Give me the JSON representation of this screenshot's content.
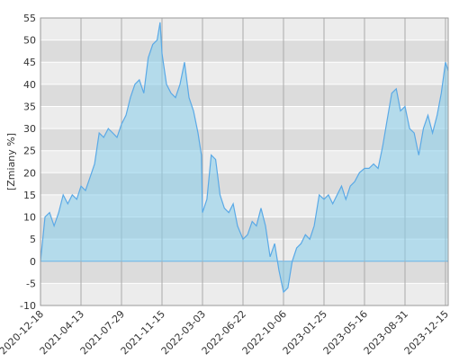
{
  "chart_data": {
    "type": "area",
    "y_label": "[Zmiany %]",
    "x": [
      "2020-12-18",
      "2020-12-31",
      "2021-01-13",
      "2021-01-26",
      "2021-02-08",
      "2021-02-21",
      "2021-03-06",
      "2021-03-19",
      "2021-04-01",
      "2021-04-13",
      "2021-04-25",
      "2021-05-07",
      "2021-05-19",
      "2021-05-31",
      "2021-06-12",
      "2021-06-24",
      "2021-07-06",
      "2021-07-17",
      "2021-07-29",
      "2021-08-10",
      "2021-08-22",
      "2021-09-03",
      "2021-09-15",
      "2021-09-27",
      "2021-10-09",
      "2021-10-21",
      "2021-11-02",
      "2021-11-10",
      "2021-11-15",
      "2021-11-27",
      "2021-12-09",
      "2021-12-21",
      "2022-01-02",
      "2022-01-14",
      "2022-01-26",
      "2022-02-07",
      "2022-02-19",
      "2022-02-28",
      "2022-03-03",
      "2022-03-15",
      "2022-03-27",
      "2022-04-08",
      "2022-04-20",
      "2022-05-02",
      "2022-05-14",
      "2022-05-26",
      "2022-06-07",
      "2022-06-22",
      "2022-07-04",
      "2022-07-16",
      "2022-07-27",
      "2022-08-08",
      "2022-08-20",
      "2022-09-01",
      "2022-09-13",
      "2022-09-24",
      "2022-10-06",
      "2022-10-18",
      "2022-10-30",
      "2022-11-11",
      "2022-11-23",
      "2022-12-05",
      "2022-12-17",
      "2022-12-29",
      "2023-01-12",
      "2023-01-25",
      "2023-02-06",
      "2023-02-18",
      "2023-03-02",
      "2023-03-14",
      "2023-03-26",
      "2023-04-07",
      "2023-04-19",
      "2023-05-02",
      "2023-05-16",
      "2023-05-28",
      "2023-06-09",
      "2023-06-21",
      "2023-07-03",
      "2023-07-15",
      "2023-07-27",
      "2023-08-08",
      "2023-08-19",
      "2023-08-31",
      "2023-09-12",
      "2023-09-24",
      "2023-10-06",
      "2023-10-18",
      "2023-10-30",
      "2023-11-11",
      "2023-11-23",
      "2023-12-04",
      "2023-12-15",
      "2023-12-22"
    ],
    "values": [
      0,
      10,
      11,
      8,
      11,
      15,
      13,
      15,
      14,
      17,
      16,
      19,
      22,
      29,
      28,
      30,
      29,
      28,
      31,
      33,
      37,
      40,
      41,
      38,
      46,
      49,
      50,
      54,
      47,
      40,
      38,
      37,
      40,
      45,
      37,
      34,
      29,
      24,
      11,
      14,
      24,
      23,
      15,
      12,
      11,
      13,
      8,
      5,
      6,
      9,
      8,
      12,
      8,
      1,
      4,
      -2,
      -7,
      -6,
      0,
      3,
      4,
      6,
      5,
      8,
      15,
      14,
      15,
      13,
      15,
      17,
      14,
      17,
      18,
      20,
      21,
      21,
      22,
      21,
      26,
      32,
      38,
      39,
      34,
      35,
      30,
      29,
      24,
      30,
      33,
      29,
      33,
      38,
      45,
      43
    ],
    "color": "#5aa9e6",
    "ylim": [
      -10,
      55
    ],
    "yticks": [
      -10,
      -5,
      0,
      5,
      10,
      15,
      20,
      25,
      30,
      35,
      40,
      45,
      50,
      55
    ],
    "xticks": [
      "2020-12-18",
      "2021-04-13",
      "2021-07-29",
      "2021-11-15",
      "2022-03-03",
      "2022-06-22",
      "2022-10-06",
      "2023-01-25",
      "2023-05-16",
      "2023-08-31",
      "2023-12-15"
    ],
    "grid": true
  }
}
